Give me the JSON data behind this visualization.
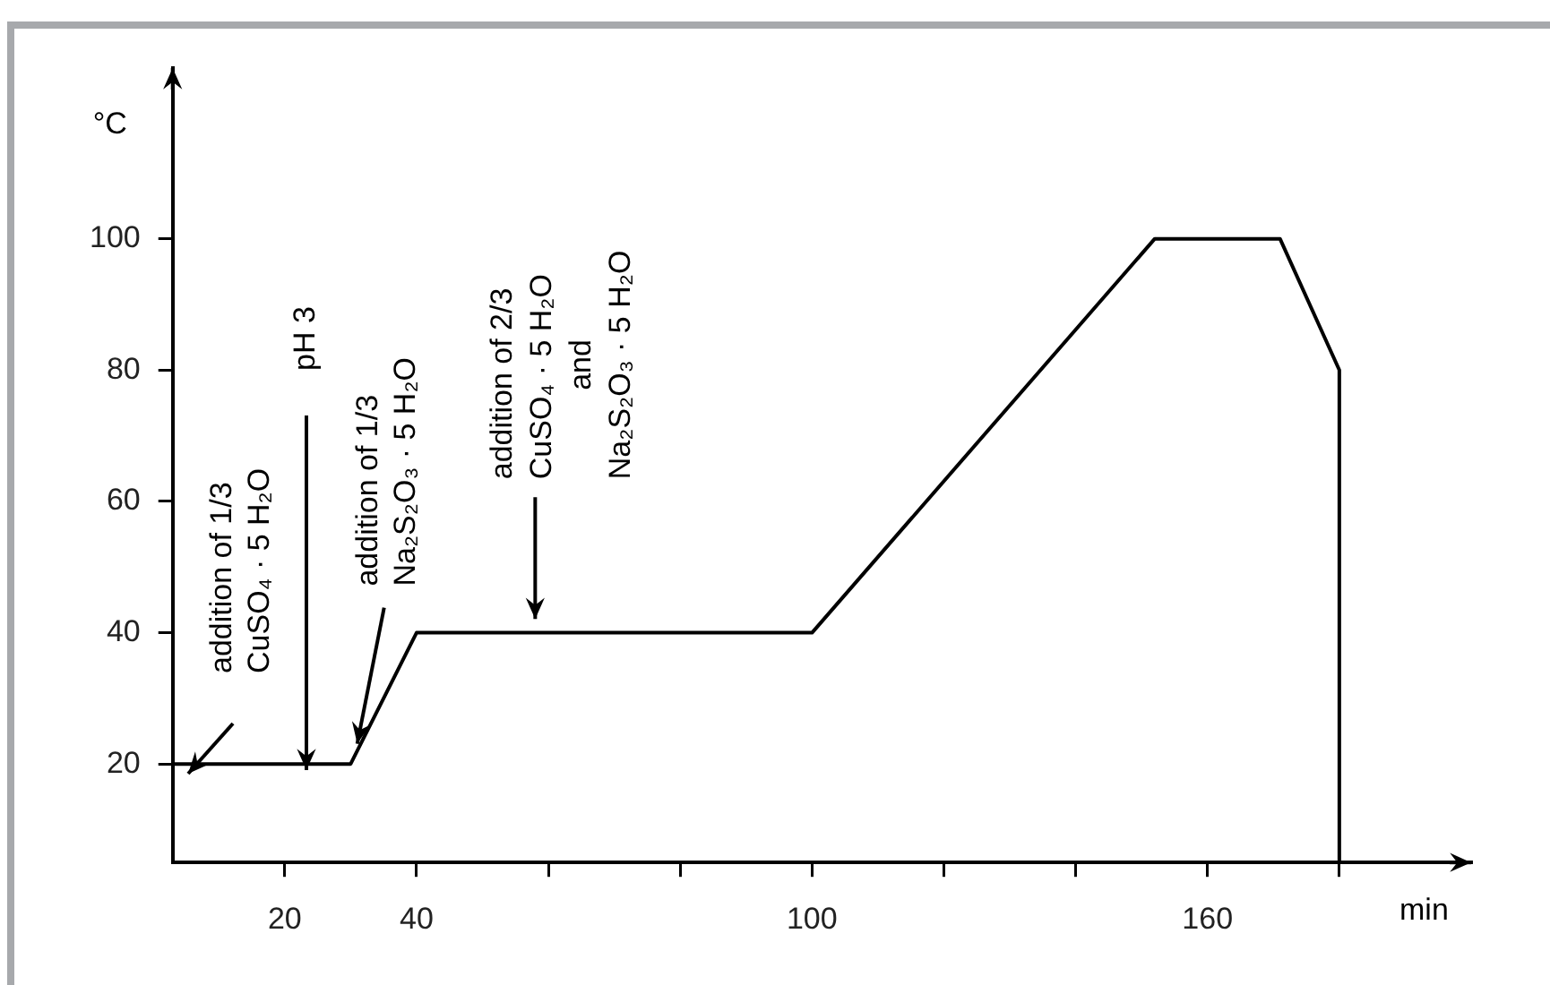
{
  "chart_data": {
    "type": "line",
    "xlabel": "min",
    "ylabel": "°C",
    "x": [
      3,
      30,
      40,
      100,
      152,
      171,
      180,
      180
    ],
    "series": [
      {
        "color": "#000000",
        "values": [
          20,
          20,
          40,
          40,
          100,
          100,
          80,
          5
        ]
      }
    ],
    "xlim": [
      3,
      200
    ],
    "ylim": [
      5,
      126
    ],
    "xticks": [
      20,
      40,
      {
        "value": 60,
        "label": null
      },
      {
        "value": 80,
        "label": null
      },
      100,
      {
        "value": 120,
        "label": null
      },
      {
        "value": 140,
        "label": null
      },
      160,
      {
        "value": 180,
        "label": null
      }
    ],
    "yticks": [
      20,
      40,
      60,
      80,
      100
    ],
    "annotations": [
      "addition of 1/3\nCuSO₄ · 5 H₂O",
      "pH 3",
      {
        "text": "addition of 1/3\nNa₂S₂O₃ · 5 H₂O",
        "x": 31,
        "y": 22
      },
      {
        "text": "addition of 2/3\nCuSO₄ · 5 H₂O\nand\nNa₂S₂O₃ · 5 H₂O",
        "x": 58,
        "y": 41
      }
    ]
  }
}
